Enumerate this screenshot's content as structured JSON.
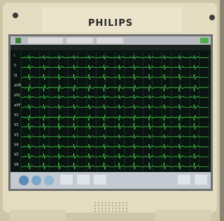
{
  "brand": "PHILIPS",
  "leads": [
    "I",
    "II",
    "III",
    "aVR",
    "aVL",
    "aVF",
    "V1",
    "V2",
    "V3",
    "V4",
    "V5",
    "V6"
  ]
}
